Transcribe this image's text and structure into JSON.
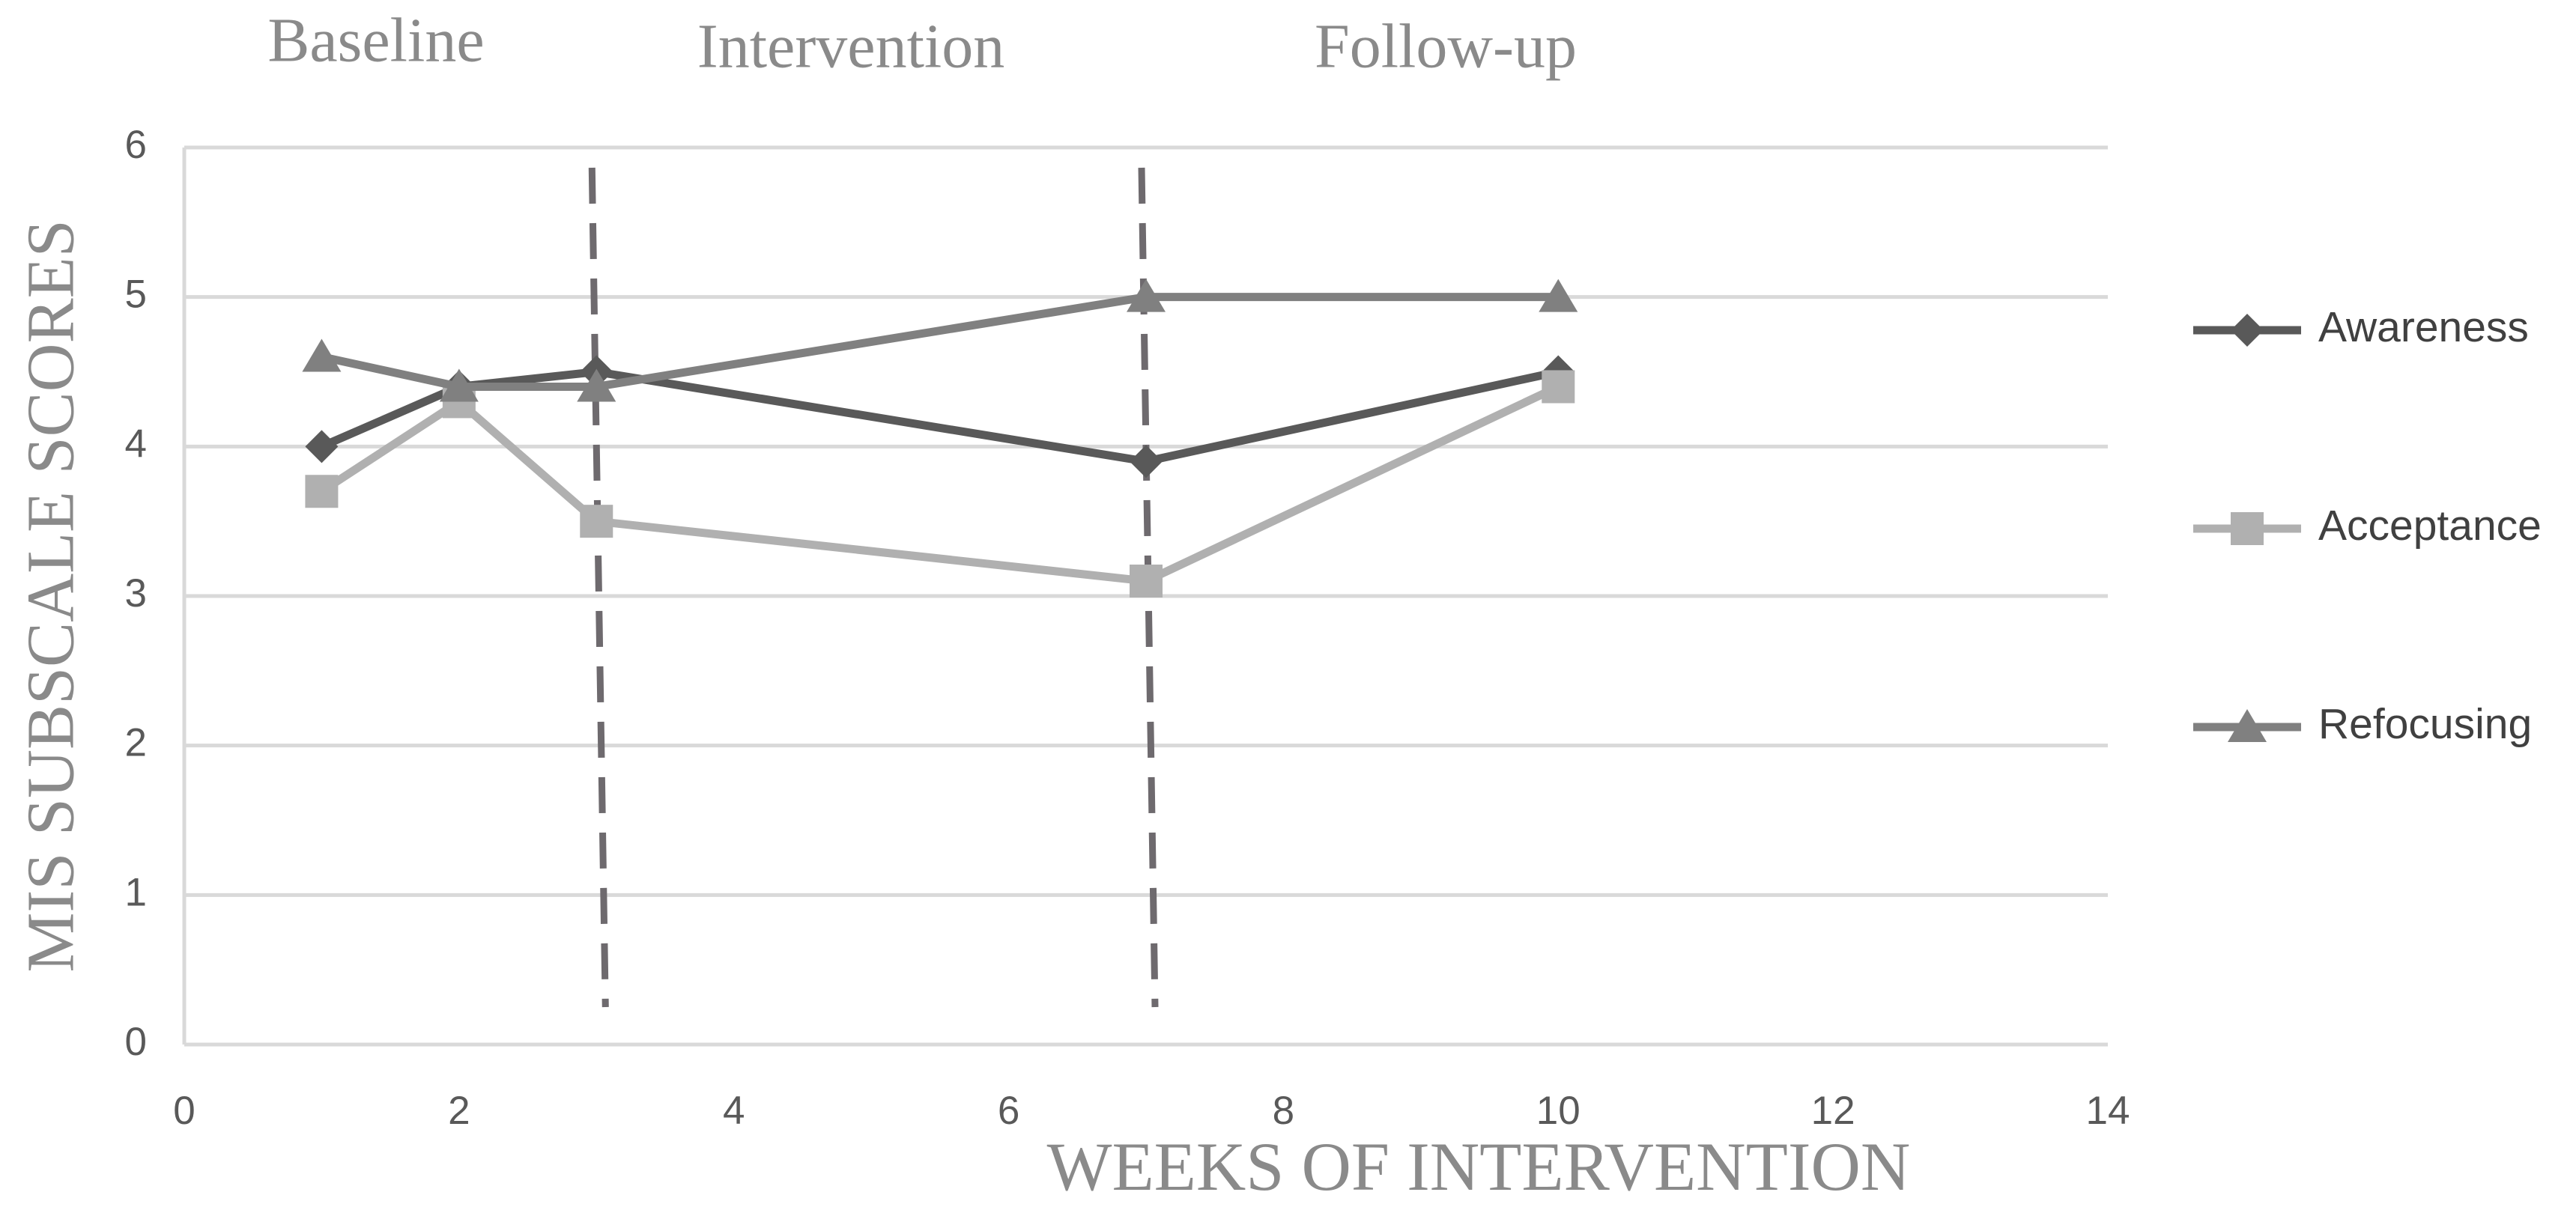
{
  "chart_data": {
    "type": "line",
    "phases": [
      "Baseline",
      "Intervention",
      "Follow-up"
    ],
    "phase_lines": [
      3,
      7
    ],
    "y_label": "MIS SUBSCALE SCORES",
    "x_label": "WEEKS OF INTERVENTION",
    "x": [
      1,
      2,
      3,
      7,
      10
    ],
    "series": [
      {
        "name": "Awareness",
        "color": "#595959",
        "marker": "diamond",
        "values": [
          4,
          4.4,
          4.5,
          3.9,
          4.5
        ]
      },
      {
        "name": "Acceptance",
        "color": "#b0b0b0",
        "marker": "square",
        "values": [
          3.7,
          4.3,
          3.5,
          3.1,
          4.4
        ]
      },
      {
        "name": "Refocusing",
        "color": "#808080",
        "marker": "triangle",
        "values": [
          4.6,
          4.4,
          4.4,
          5,
          5
        ]
      }
    ],
    "xlim": [
      0,
      14
    ],
    "xticks": [
      0,
      2,
      4,
      6,
      8,
      10,
      12,
      14
    ],
    "ylim": [
      0,
      6
    ],
    "yticks": [
      0,
      1,
      2,
      3,
      4,
      5,
      6
    ],
    "grid": true,
    "legend": "right"
  }
}
